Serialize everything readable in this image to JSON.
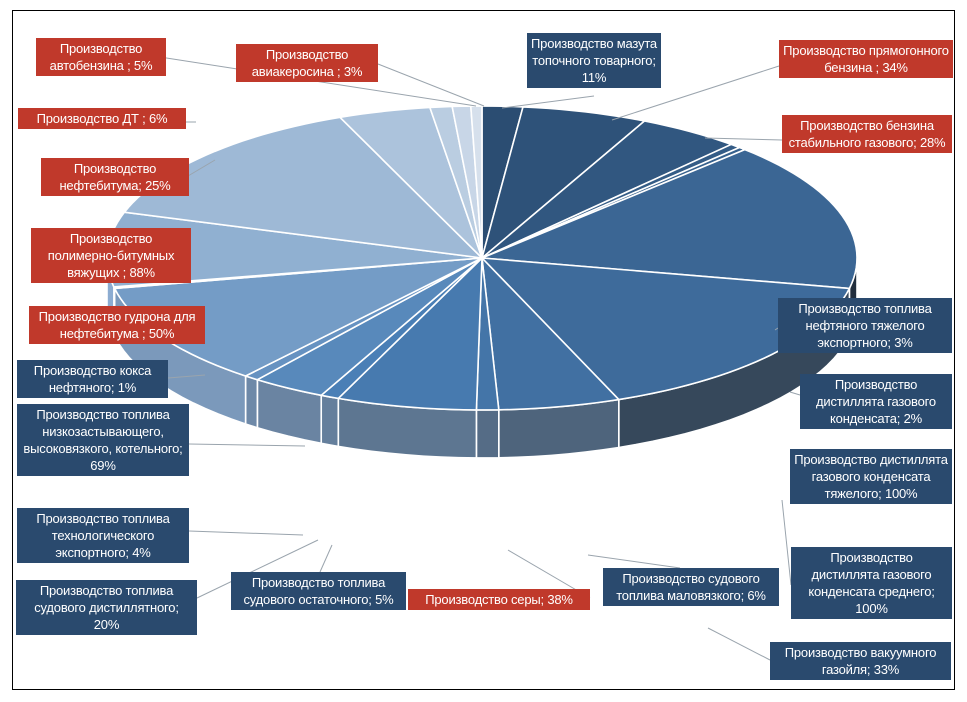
{
  "chart_data": {
    "type": "pie",
    "style": "3d-exploded-ellipse",
    "title": "",
    "colors": {
      "highlight_box": "#c0392b",
      "standard_box": "#2a4a6e",
      "slice_dark": "#2b4d72",
      "slice_mid": "#4a7fb6",
      "slice_light": "#d6e0ec",
      "side_dark": "#1d2a38",
      "side_light": "#8fb0d6"
    },
    "slices": [
      {
        "label": "Производство мазута топочного товарного; 11%",
        "value": 11,
        "highlight": false
      },
      {
        "label": "Производство прямогонного бензина ; 34%",
        "value": 34,
        "highlight": true
      },
      {
        "label": "Производство бензина стабильного газового; 28%",
        "value": 28,
        "highlight": true
      },
      {
        "label": "Производство топлива нефтяного тяжелого экспортного; 3%",
        "value": 3,
        "highlight": false
      },
      {
        "label": "Производство дистиллята газового конденсата; 2%",
        "value": 2,
        "highlight": false
      },
      {
        "label": "Производство дистиллята газового конденсата тяжелого; 100%",
        "value": 100,
        "highlight": false
      },
      {
        "label": "Производство дистиллята газового конденсата среднего; 100%",
        "value": 100,
        "highlight": false
      },
      {
        "label": "Производство вакуумного газойля; 33%",
        "value": 33,
        "highlight": false
      },
      {
        "label": "Производство судового топлива маловязкого; 6%",
        "value": 6,
        "highlight": false
      },
      {
        "label": "Производство серы; 38%",
        "value": 38,
        "highlight": true
      },
      {
        "label": "Производство топлива судового остаточного; 5%",
        "value": 5,
        "highlight": false
      },
      {
        "label": "Производство топлива судового дистиллятного; 20%",
        "value": 20,
        "highlight": false
      },
      {
        "label": "Производство топлива технологического экспортного; 4%",
        "value": 4,
        "highlight": false
      },
      {
        "label": "Производство топлива низкозастывающего, высоковязкого, котельного; 69%",
        "value": 69,
        "highlight": false
      },
      {
        "label": "Производство кокса нефтяного; 1%",
        "value": 1,
        "highlight": false
      },
      {
        "label": "Производство гудрона для нефтебитума ; 50%",
        "value": 50,
        "highlight": true
      },
      {
        "label": "Производство полимерно-битумных вяжущих ; 88%",
        "value": 88,
        "highlight": true
      },
      {
        "label": "Производство нефтебитума; 25%",
        "value": 25,
        "highlight": true
      },
      {
        "label": "Производство ДТ ; 6%",
        "value": 6,
        "highlight": true
      },
      {
        "label": "Производство автобензина ; 5%",
        "value": 5,
        "highlight": true
      },
      {
        "label": "Производство авиакеросина ; 3%",
        "value": 3,
        "highlight": true
      }
    ]
  },
  "labels": {
    "mazut": "Производство мазута топочного товарного; 11%",
    "pryamogon": "Производство прямогонного бензина ; 34%",
    "benzin_stab": "Производство бензина стабильного газового; 28%",
    "toplivo_tyazh": "Производство топлива нефтяного тяжелого экспортного; 3%",
    "distillat": "Производство дистиллята газового конденсата; 2%",
    "distillat_tyazh": "Производство дистиллята газового конденсата тяжелого; 100%",
    "distillat_sred": "Производство дистиллята газового конденсата среднего; 100%",
    "vakuum": "Производство вакуумного газойля; 33%",
    "sudovoe_malo": "Производство судового топлива маловязкого; 6%",
    "sera": "Производство серы; 38%",
    "sudovoe_ost": "Производство топлива судового остаточного; 5%",
    "sudovoe_dist": "Производство топлива судового дистиллятного; 20%",
    "tehnolog": "Производство топлива технологического экспортного; 4%",
    "nizkozast": "Производство топлива низкозастывающего, высоковязкого, котельного; 69%",
    "koks": "Производство кокса нефтяного; 1%",
    "gudron": "Производство гудрона для нефтебитума ; 50%",
    "polimer": "Производство полимерно-битумных вяжущих ; 88%",
    "neftebitum": "Производство нефтебитума; 25%",
    "dt": "Производство ДТ ; 6%",
    "avtobenzin": "Производство автобензина ; 5%",
    "aviakerosin": "Производство авиакеросина ; 3%"
  }
}
